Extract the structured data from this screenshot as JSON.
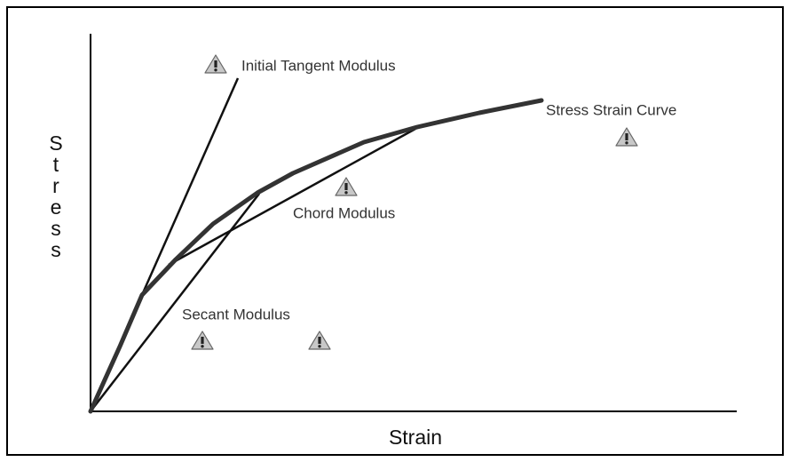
{
  "diagram": {
    "y_axis_label": "Stress",
    "x_axis_label": "Strain",
    "labels": {
      "initial_tangent": "Initial Tangent Modulus",
      "curve": "Stress Strain Curve",
      "chord": "Chord Modulus",
      "secant": "Secant Modulus"
    }
  }
}
